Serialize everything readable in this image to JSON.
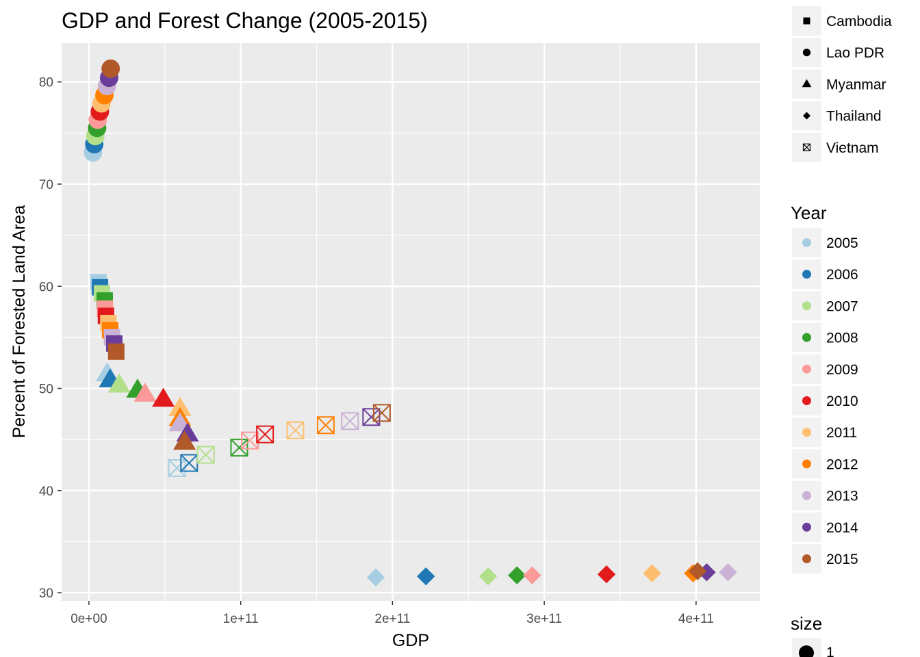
{
  "chart_data": {
    "type": "scatter",
    "title": "GDP and Forest Change (2005-2015)",
    "xlabel": "GDP",
    "ylabel": "Percent of Forested Land Area",
    "xlim": [
      -18000000000.0,
      442000000000.0
    ],
    "ylim": [
      29.2,
      83.8
    ],
    "x_ticks": [
      0,
      100000000000.0,
      200000000000.0,
      300000000000.0,
      400000000000.0
    ],
    "x_tick_labels": [
      "0e+00",
      "1e+11",
      "2e+11",
      "3e+11",
      "4e+11"
    ],
    "y_ticks": [
      30,
      40,
      50,
      60,
      70,
      80
    ],
    "y_tick_labels": [
      "30",
      "40",
      "50",
      "60",
      "70",
      "80"
    ],
    "grid": true,
    "years": [
      "2005",
      "2006",
      "2007",
      "2008",
      "2009",
      "2010",
      "2011",
      "2012",
      "2013",
      "2014",
      "2015"
    ],
    "year_colors": [
      "#a6cee3",
      "#1f78b4",
      "#b2df8a",
      "#33a02c",
      "#fb9a99",
      "#e31a1c",
      "#fdbf6f",
      "#ff7f00",
      "#cab2d6",
      "#6a3d9a",
      "#b15928"
    ],
    "series": [
      {
        "name": "Cambodia",
        "shape": "square",
        "x": [
          6300000000.0,
          7300000000.0,
          8600000000.0,
          10400000000.0,
          10600000000.0,
          11200000000.0,
          12800000000.0,
          14000000000.0,
          15200000000.0,
          16700000000.0,
          18000000000.0
        ],
        "y": [
          60.4,
          59.9,
          59.3,
          58.6,
          57.8,
          57.1,
          56.4,
          55.7,
          55.0,
          54.4,
          53.6
        ]
      },
      {
        "name": "Lao PDR",
        "shape": "circle",
        "x": [
          2700000000.0,
          3500000000.0,
          4200000000.0,
          5400000000.0,
          5800000000.0,
          7200000000.0,
          8300000000.0,
          10200000000.0,
          11900000000.0,
          13300000000.0,
          14300000000.0
        ],
        "y": [
          73.1,
          73.9,
          74.7,
          75.5,
          76.3,
          77.1,
          77.9,
          78.7,
          79.6,
          80.4,
          81.3
        ]
      },
      {
        "name": "Myanmar",
        "shape": "triangle",
        "x": [
          12000000000.0,
          14000000000.0,
          20000000000.0,
          32000000000.0,
          37000000000.0,
          49000000000.0,
          60000000000.0,
          60000000000.0,
          60000000000.0,
          65000000000.0,
          63000000000.0
        ],
        "y": [
          51.4,
          50.8,
          50.3,
          49.8,
          49.4,
          48.9,
          48.0,
          47.0,
          46.5,
          45.5,
          44.7
        ]
      },
      {
        "name": "Thailand",
        "shape": "diamond",
        "x": [
          189000000000.0,
          222000000000.0,
          263000000000.0,
          282000000000.0,
          292000000000.0,
          341000000000.0,
          371000000000.0,
          398000000000.0,
          421000000000.0,
          407000000000.0,
          401000000000.0
        ],
        "y": [
          31.5,
          31.6,
          31.6,
          31.7,
          31.7,
          31.8,
          31.9,
          31.9,
          32.0,
          32.0,
          32.1
        ]
      },
      {
        "name": "Vietnam",
        "shape": "square-cross",
        "x": [
          58000000000.0,
          66000000000.0,
          77000000000.0,
          99000000000.0,
          106000000000.0,
          116000000000.0,
          136000000000.0,
          156000000000.0,
          172000000000.0,
          186000000000.0,
          193000000000.0
        ],
        "y": [
          42.2,
          42.7,
          43.5,
          44.2,
          44.9,
          45.5,
          45.9,
          46.4,
          46.8,
          47.2,
          47.6
        ]
      }
    ],
    "shape_legend": [
      "Cambodia",
      "Lao PDR",
      "Myanmar",
      "Thailand",
      "Vietnam"
    ],
    "color_legend_title": "Year",
    "size_legend_title": "size",
    "size_legend_label": "1",
    "legend_position": "right"
  }
}
